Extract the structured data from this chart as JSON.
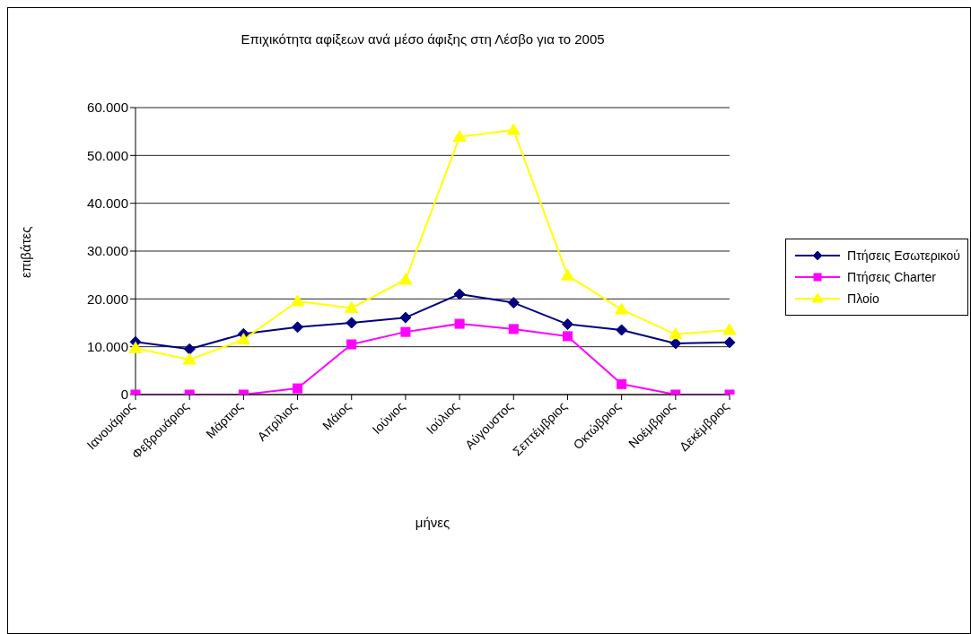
{
  "chart_data": {
    "type": "line",
    "title": "Επιχικότητα αφίξεων ανά μέσο άφιξης στη Λέσβο για το 2005",
    "xlabel": "μήνες",
    "ylabel": "επιβάτες",
    "categories": [
      "Ιανουάριος",
      "Φεβρουάριος",
      "Μάρτιος",
      "Απρίλιος",
      "Μάιος",
      "Ιούνιος",
      "Ιούλιος",
      "Αύγουστος",
      "Σεπτέμβριος",
      "Οκτώβριος",
      "Νοέμβριος",
      "Δεκέμβριος"
    ],
    "series": [
      {
        "name": "Πτήσεις Εσωτερικού",
        "color": "#000080",
        "marker": "diamond",
        "values": [
          11000,
          9500,
          12700,
          14100,
          15000,
          16100,
          21000,
          19200,
          14700,
          13500,
          10700,
          10900
        ]
      },
      {
        "name": "Πτήσεις Charter",
        "color": "#ff00ff",
        "marker": "square",
        "values": [
          0,
          0,
          0,
          1300,
          10500,
          13100,
          14800,
          13700,
          12200,
          2200,
          0,
          0
        ]
      },
      {
        "name": "Πλοίο",
        "color": "#ffff00",
        "marker": "triangle",
        "values": [
          9700,
          7300,
          11500,
          19500,
          18100,
          24000,
          53900,
          55300,
          24900,
          17800,
          12600,
          13500
        ]
      }
    ],
    "ylim": [
      0,
      60000
    ],
    "yticks": [
      0,
      {
        "value": 10000,
        "label": "10.000"
      },
      {
        "value": 20000,
        "label": "20.000"
      },
      {
        "value": 30000,
        "label": "30.000"
      },
      {
        "value": 40000,
        "label": "40.000"
      },
      {
        "value": 50000,
        "label": "50.000"
      },
      {
        "value": 60000,
        "label": "60.000"
      }
    ],
    "grid": "y",
    "legend": "right",
    "line_style": "solid"
  }
}
